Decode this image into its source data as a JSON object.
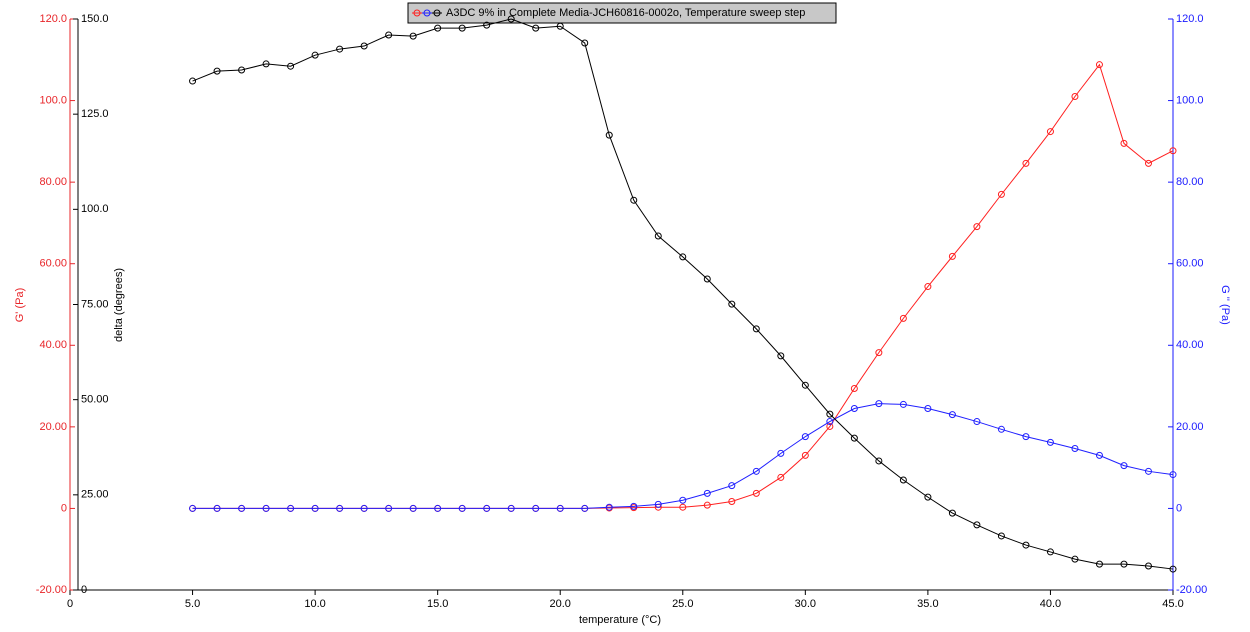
{
  "chart_data": {
    "type": "line",
    "title": "A3DC 9% in Complete Media-JCH60816-0002o, Temperature sweep step",
    "xlabel": "temperature (°C)",
    "ylabel": "G' (Pa)",
    "y2label": "G '' (Pa)",
    "y3label": "delta (degrees)",
    "x": [
      5,
      6,
      7,
      8,
      9,
      10,
      11,
      12,
      13,
      14,
      15,
      16,
      17,
      18,
      19,
      20,
      21,
      22,
      23,
      24,
      25,
      26,
      27,
      28,
      29,
      30,
      31,
      32,
      33,
      34,
      35,
      36,
      37,
      38,
      39,
      40,
      41,
      42,
      43,
      44,
      45
    ],
    "xlim": [
      0,
      45
    ],
    "xticks": [
      0,
      {
        "value": 5,
        "label": "5.0"
      },
      {
        "value": 10,
        "label": "10.0"
      },
      {
        "value": 15,
        "label": "15.0"
      },
      {
        "value": 20,
        "label": "20.0"
      },
      {
        "value": 25,
        "label": "25.0"
      },
      {
        "value": 30,
        "label": "30.0"
      },
      {
        "value": 35,
        "label": "35.0"
      },
      {
        "value": 40,
        "label": "40.0"
      },
      {
        "value": 45,
        "label": "45.0"
      }
    ],
    "ylim": [
      -20,
      120
    ],
    "yticks": [
      {
        "value": -20,
        "label": "-20.00"
      },
      0,
      {
        "value": 20,
        "label": "20.00"
      },
      {
        "value": 40,
        "label": "40.00"
      },
      {
        "value": 60,
        "label": "60.00"
      },
      {
        "value": 80,
        "label": "80.00"
      },
      {
        "value": 100,
        "label": "100.0"
      },
      {
        "value": 120,
        "label": "120.0"
      }
    ],
    "y2lim": [
      -20,
      120
    ],
    "y2ticks": [
      {
        "value": -20,
        "label": "-20.00"
      },
      0,
      {
        "value": 20,
        "label": "20.00"
      },
      {
        "value": 40,
        "label": "40.00"
      },
      {
        "value": 60,
        "label": "60.00"
      },
      {
        "value": 80,
        "label": "80.00"
      },
      {
        "value": 100,
        "label": "100.0"
      },
      {
        "value": 120,
        "label": "120.0"
      }
    ],
    "y3lim": [
      0,
      150
    ],
    "y3ticks": [
      0,
      {
        "value": 25,
        "label": "25.00"
      },
      {
        "value": 50,
        "label": "50.00"
      },
      {
        "value": 75,
        "label": "75.00"
      },
      {
        "value": 100,
        "label": "100.0"
      },
      {
        "value": 125,
        "label": "125.0"
      },
      {
        "value": 150,
        "label": "150.0"
      }
    ],
    "ycolor": "#e8262a",
    "y2color": "#1a1aff",
    "y3color": "#000000",
    "series": [
      {
        "color": "#ff2020",
        "axis": "y",
        "values": [
          0,
          0,
          0,
          0,
          0,
          0,
          0,
          0,
          0,
          0,
          0,
          0,
          0,
          0,
          0,
          0,
          0,
          0.1,
          0.2,
          0.3,
          0.3,
          0.8,
          1.7,
          3.7,
          7.6,
          13.0,
          20.1,
          29.4,
          38.2,
          46.6,
          54.4,
          61.8,
          69.1,
          77.0,
          84.6,
          92.4,
          101.0,
          108.8,
          89.5,
          84.6,
          87.7
        ]
      },
      {
        "color": "#2020ff",
        "axis": "y2",
        "values": [
          0,
          0,
          0,
          0,
          0,
          0,
          0,
          0,
          0,
          0,
          0,
          0,
          0,
          0,
          0,
          0,
          0,
          0.3,
          0.5,
          1.0,
          2.0,
          3.7,
          5.6,
          9.1,
          13.5,
          17.6,
          21.3,
          24.5,
          25.7,
          25.5,
          24.5,
          23.0,
          21.3,
          19.4,
          17.6,
          16.2,
          14.7,
          13.0,
          10.5,
          9.1,
          8.3
        ]
      },
      {
        "color": "#000000",
        "axis": "y3",
        "values": [
          133.7,
          136.3,
          136.6,
          138.2,
          137.6,
          140.5,
          142.1,
          142.9,
          145.8,
          145.5,
          147.6,
          147.6,
          148.4,
          150.0,
          147.6,
          148.1,
          143.7,
          119.5,
          102.4,
          93.0,
          87.5,
          81.7,
          75.1,
          68.6,
          61.5,
          53.8,
          46.2,
          39.9,
          33.9,
          28.9,
          24.4,
          20.2,
          17.1,
          14.2,
          11.8,
          10.0,
          8.1,
          6.8,
          6.8,
          6.3,
          5.5
        ]
      }
    ]
  }
}
